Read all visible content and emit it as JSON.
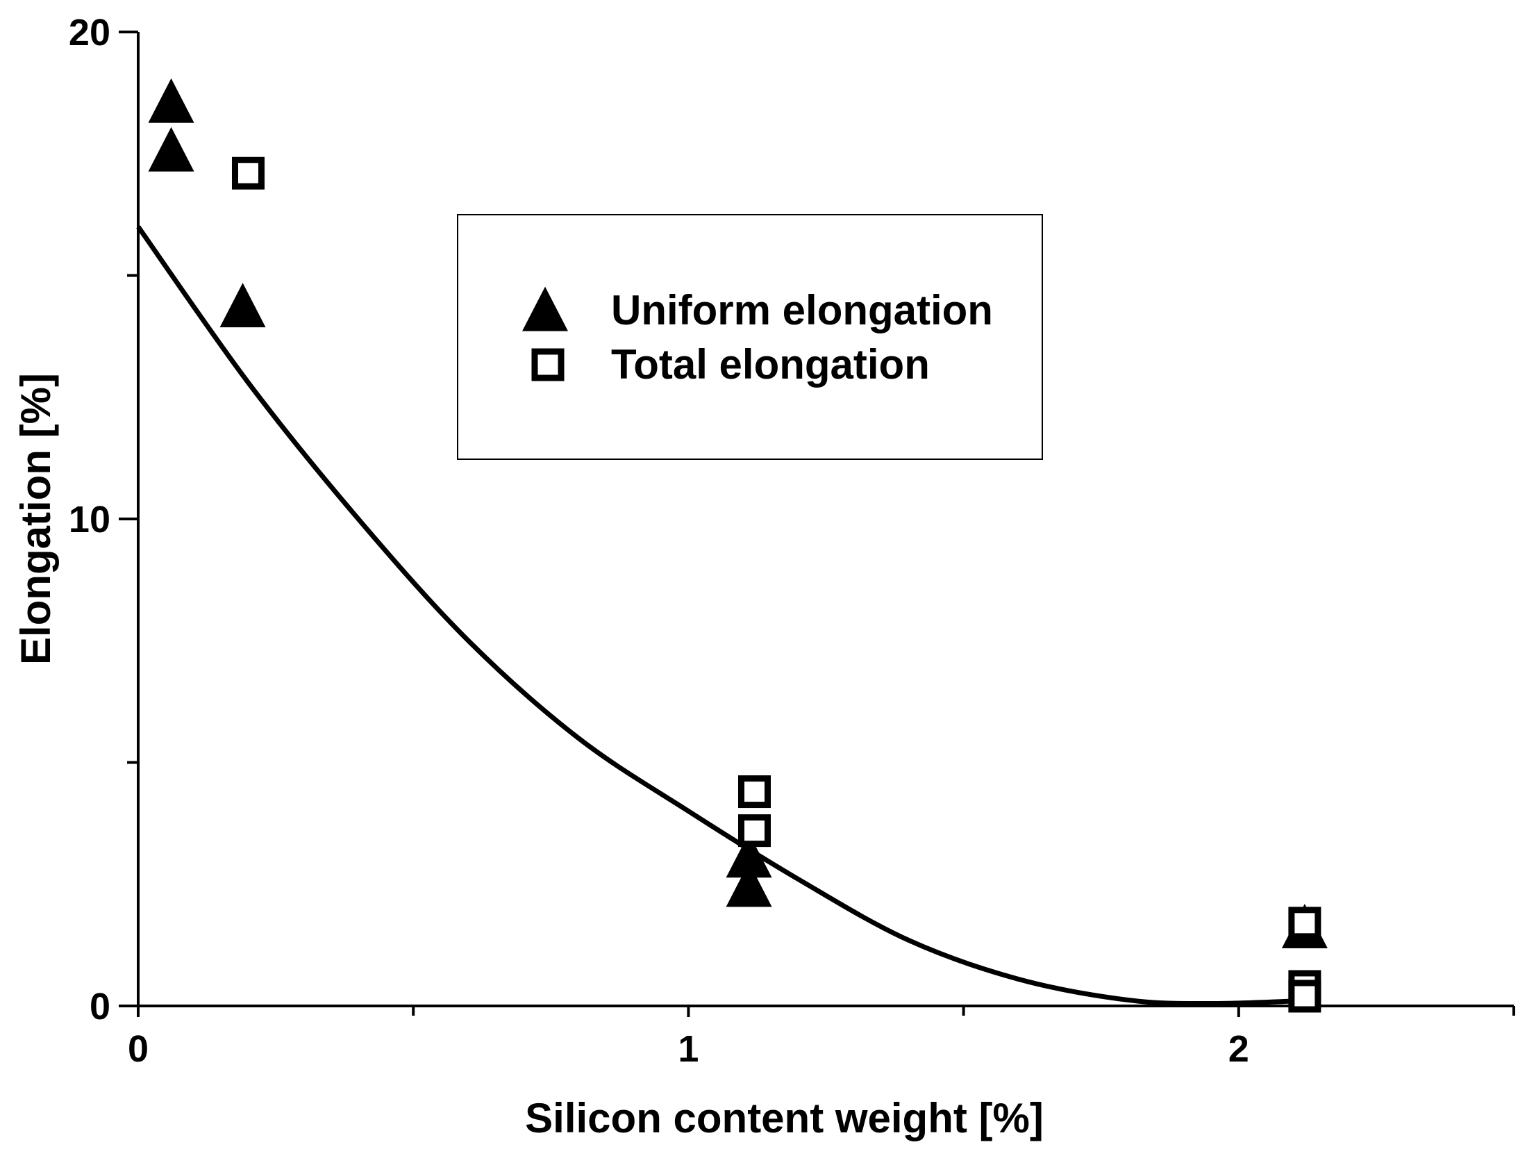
{
  "chart_data": {
    "type": "scatter",
    "xlabel": "Silicon content weight [%]",
    "ylabel": "Elongation [%]",
    "xlim": [
      0,
      2.5
    ],
    "ylim": [
      0,
      20
    ],
    "x_ticks": [
      {
        "value": 0,
        "label": "0"
      },
      {
        "value": 1,
        "label": "1"
      },
      {
        "value": 2,
        "label": "2"
      }
    ],
    "x_minor_ticks": [
      0.5,
      1.5,
      2.5
    ],
    "y_ticks": [
      {
        "value": 0,
        "label": "0"
      },
      {
        "value": 10,
        "label": "10"
      },
      {
        "value": 20,
        "label": "20"
      }
    ],
    "y_minor_ticks": [
      5,
      15
    ],
    "grid": false,
    "legend": {
      "position": "top-center",
      "items": [
        "Uniform elongation",
        "Total elongation"
      ]
    },
    "series": [
      {
        "name": "Uniform elongation",
        "marker": "filled-triangle",
        "color": "#000000",
        "points": [
          {
            "x": 0.06,
            "y": 18.5
          },
          {
            "x": 0.06,
            "y": 17.5
          },
          {
            "x": 0.19,
            "y": 14.3
          },
          {
            "x": 1.11,
            "y": 3.0
          },
          {
            "x": 1.11,
            "y": 2.4
          },
          {
            "x": 2.12,
            "y": 1.55
          }
        ]
      },
      {
        "name": "Total elongation",
        "marker": "open-square",
        "color": "#000000",
        "points": [
          {
            "x": 0.2,
            "y": 17.1
          },
          {
            "x": 1.12,
            "y": 4.4
          },
          {
            "x": 1.12,
            "y": 3.6
          },
          {
            "x": 2.12,
            "y": 1.7
          },
          {
            "x": 2.12,
            "y": 0.4
          },
          {
            "x": 2.12,
            "y": 0.2
          }
        ]
      }
    ],
    "fit_curve": {
      "type": "polynomial-fit",
      "color": "#000000",
      "x": [
        0,
        0.2,
        0.4,
        0.6,
        0.8,
        1.0,
        1.2,
        1.4,
        1.6,
        1.8,
        1.95,
        2.1
      ],
      "y": [
        16.0,
        12.8,
        10.0,
        7.5,
        5.5,
        4.0,
        2.6,
        1.35,
        0.55,
        0.12,
        0.05,
        0.1
      ]
    }
  }
}
